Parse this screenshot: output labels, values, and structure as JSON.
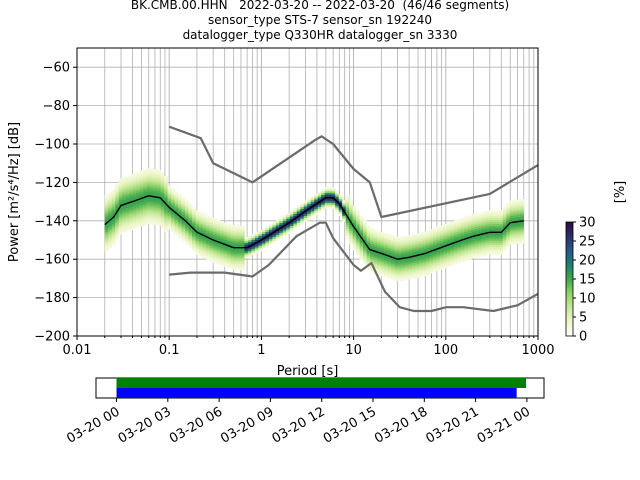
{
  "title_lines": [
    "BK.CMB.00.HHN   2022-03-20 -- 2022-03-20  (46/46 segments)",
    "sensor_type STS-7 sensor_sn 192240",
    "datalogger_type Q330HR datalogger_sn 3330"
  ],
  "chart_data": [
    {
      "type": "heatmap",
      "xlabel": "Period [s]",
      "ylabel": "Power [m²/s⁴/Hz] [dB]",
      "xscale": "log",
      "xlim": [
        0.01,
        1000
      ],
      "ylim": [
        -200,
        -50
      ],
      "x_ticks": [
        "0.01",
        "0.1",
        "1",
        "10",
        "100",
        "1000"
      ],
      "y_ticks": [
        "−60",
        "−80",
        "−100",
        "−120",
        "−140",
        "−160",
        "−180",
        "−200"
      ],
      "grid": true,
      "colorbar": {
        "label": "[%]",
        "range": [
          0,
          30
        ],
        "ticks": [
          "0",
          "5",
          "10",
          "15",
          "20",
          "25",
          "30"
        ],
        "colors": [
          "#ffffff",
          "#eef6c8",
          "#c7e89a",
          "#8fd16a",
          "#3ea84a",
          "#1f7f6e",
          "#245a8a",
          "#2b2f6e",
          "#2a0a3a"
        ]
      },
      "mean_curve": {
        "color": "#000000",
        "x": [
          0.02,
          0.025,
          0.03,
          0.04,
          0.06,
          0.08,
          0.1,
          0.15,
          0.2,
          0.3,
          0.5,
          0.7,
          1,
          2,
          3,
          4,
          5,
          6,
          7,
          10,
          15,
          20,
          30,
          40,
          60,
          100,
          150,
          200,
          300,
          400,
          500,
          700
        ],
        "y": [
          -142,
          -138,
          -132,
          -130,
          -127,
          -128,
          -133,
          -140,
          -146,
          -150,
          -154,
          -154,
          -150,
          -141,
          -135,
          -131,
          -128,
          -128,
          -131,
          -143,
          -155,
          -157,
          -160,
          -159,
          -157,
          -153,
          -150,
          -148,
          -146,
          -146,
          -141,
          -140
        ]
      },
      "noise_models": [
        {
          "name_hint": "high",
          "color": "#6b6b6b",
          "x": [
            0.1,
            0.22,
            0.3,
            0.8,
            3.8,
            4.5,
            6,
            10,
            15,
            20,
            300,
            1000
          ],
          "y": [
            -91,
            -97,
            -110,
            -120,
            -98,
            -96,
            -100,
            -113,
            -120,
            -138,
            -126,
            -111
          ]
        },
        {
          "name_hint": "low",
          "color": "#6b6b6b",
          "x": [
            0.1,
            0.17,
            0.4,
            0.8,
            1.2,
            2.4,
            4.3,
            5,
            6,
            10,
            12,
            15.6,
            21.9,
            31.6,
            45,
            70,
            101,
            154,
            328,
            600,
            1000
          ],
          "y": [
            -168,
            -167,
            -167,
            -169,
            -163,
            -148,
            -141,
            -141,
            -149,
            -163,
            -166,
            -162,
            -177,
            -185,
            -187,
            -187,
            -185,
            -185,
            -187,
            -184,
            -178
          ]
        }
      ]
    },
    {
      "type": "timeline",
      "x_ticks": [
        "03-20 00",
        "03-20 03",
        "03-20 06",
        "03-20 09",
        "03-20 12",
        "03-20 15",
        "03-20 18",
        "03-20 21",
        "03-21 00"
      ],
      "bars": [
        {
          "color": "#008000",
          "start_h": 0.0,
          "end_h": 23.95
        },
        {
          "color": "#0000ff",
          "start_h": 0.0,
          "end_h": 23.4
        }
      ],
      "xlim_h": [
        -1.2,
        25.0
      ]
    }
  ]
}
